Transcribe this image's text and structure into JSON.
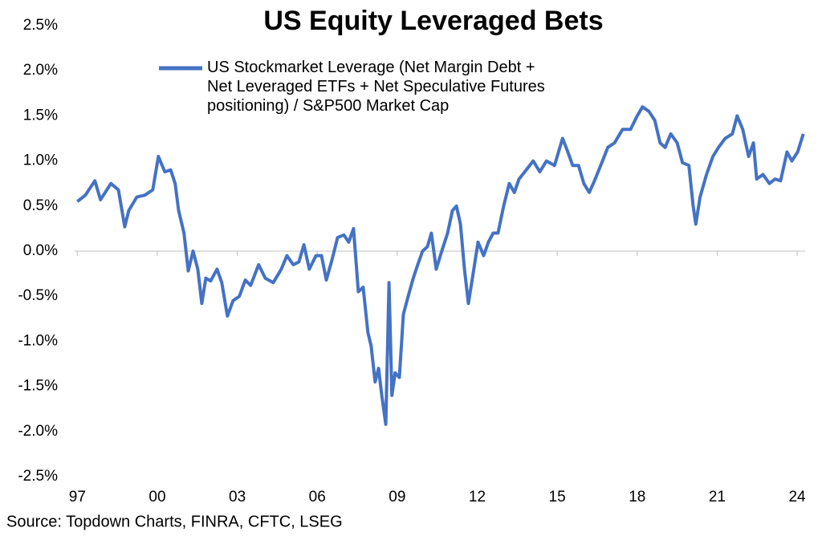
{
  "chart_data": {
    "type": "line",
    "title": "US Equity Leveraged Bets",
    "source": "Source: Topdown Charts, FINRA, CFTC, LSEG",
    "xlim": [
      1996.9,
      2024.3
    ],
    "xticks": [
      {
        "value": 1997,
        "label": "97"
      },
      {
        "value": 2000,
        "label": "00"
      },
      {
        "value": 2003,
        "label": "03"
      },
      {
        "value": 2006,
        "label": "06"
      },
      {
        "value": 2009,
        "label": "09"
      },
      {
        "value": 2012,
        "label": "12"
      },
      {
        "value": 2015,
        "label": "15"
      },
      {
        "value": 2018,
        "label": "18"
      },
      {
        "value": 2021,
        "label": "21"
      },
      {
        "value": 2024,
        "label": "24"
      }
    ],
    "ylim": [
      -2.5,
      2.5
    ],
    "yticks": [
      {
        "value": 2.5,
        "label": "2.5%"
      },
      {
        "value": 2.0,
        "label": "2.0%"
      },
      {
        "value": 1.5,
        "label": "1.5%"
      },
      {
        "value": 1.0,
        "label": "1.0%"
      },
      {
        "value": 0.5,
        "label": "0.5%"
      },
      {
        "value": 0,
        "label": "0.0%"
      },
      {
        "value": -0.5,
        "label": "-0.5%"
      },
      {
        "value": -1.0,
        "label": "-1.0%"
      },
      {
        "value": -1.5,
        "label": "-1.5%"
      },
      {
        "value": -2.0,
        "label": "-2.0%"
      },
      {
        "value": -2.5,
        "label": "-2.5%"
      }
    ],
    "grid": false,
    "x": [
      1997.0,
      1997.3,
      1997.66,
      1997.87,
      1998.26,
      1998.54,
      1998.78,
      1998.93,
      1999.23,
      1999.53,
      1999.83,
      2000.04,
      2000.28,
      2000.5,
      2000.67,
      2000.8,
      2001.0,
      2001.16,
      2001.34,
      2001.52,
      2001.67,
      2001.82,
      2002.0,
      2002.24,
      2002.42,
      2002.63,
      2002.84,
      2003.08,
      2003.3,
      2003.5,
      2003.8,
      2004.05,
      2004.35,
      2004.65,
      2004.86,
      2005.1,
      2005.31,
      2005.5,
      2005.7,
      2005.95,
      2006.16,
      2006.34,
      2006.55,
      2006.76,
      2007.0,
      2007.18,
      2007.36,
      2007.54,
      2007.72,
      2007.9,
      2008.02,
      2008.17,
      2008.3,
      2008.42,
      2008.57,
      2008.69,
      2008.8,
      2008.92,
      2009.08,
      2009.23,
      2009.41,
      2009.6,
      2009.77,
      2009.95,
      2010.13,
      2010.28,
      2010.46,
      2010.67,
      2010.89,
      2011.07,
      2011.22,
      2011.37,
      2011.52,
      2011.67,
      2011.82,
      2012.03,
      2012.24,
      2012.42,
      2012.6,
      2012.78,
      2012.99,
      2013.2,
      2013.39,
      2013.57,
      2013.84,
      2014.1,
      2014.35,
      2014.6,
      2014.9,
      2015.2,
      2015.4,
      2015.58,
      2015.8,
      2016.0,
      2016.2,
      2016.4,
      2016.63,
      2016.9,
      2017.15,
      2017.45,
      2017.75,
      2018.0,
      2018.2,
      2018.44,
      2018.66,
      2018.86,
      2019.05,
      2019.26,
      2019.5,
      2019.7,
      2019.94,
      2020.1,
      2020.2,
      2020.36,
      2020.6,
      2020.84,
      2021.05,
      2021.3,
      2021.57,
      2021.75,
      2021.96,
      2022.18,
      2022.36,
      2022.48,
      2022.72,
      2022.96,
      2023.17,
      2023.38,
      2023.62,
      2023.8,
      2024.02,
      2024.23
    ],
    "series": [
      {
        "name": "US Stockmarket Leverage (Net Margin Debt + Net Leveraged ETFs + Net Speculative Futures positioning) / S&P500 Market Cap",
        "color": "#4472c4",
        "values": [
          0.55,
          0.62,
          0.78,
          0.57,
          0.75,
          0.68,
          0.27,
          0.45,
          0.6,
          0.62,
          0.68,
          1.05,
          0.88,
          0.9,
          0.75,
          0.45,
          0.2,
          -0.22,
          0.0,
          -0.2,
          -0.58,
          -0.3,
          -0.33,
          -0.2,
          -0.35,
          -0.72,
          -0.55,
          -0.5,
          -0.32,
          -0.38,
          -0.15,
          -0.3,
          -0.35,
          -0.2,
          -0.05,
          -0.15,
          -0.12,
          0.07,
          -0.2,
          -0.05,
          -0.05,
          -0.32,
          -0.1,
          0.15,
          0.18,
          0.1,
          0.25,
          -0.45,
          -0.4,
          -0.9,
          -1.05,
          -1.45,
          -1.3,
          -1.6,
          -1.92,
          -0.35,
          -1.6,
          -1.35,
          -1.4,
          -0.7,
          -0.5,
          -0.3,
          -0.15,
          0.0,
          0.05,
          0.2,
          -0.2,
          0.0,
          0.2,
          0.45,
          0.5,
          0.3,
          -0.2,
          -0.58,
          -0.3,
          0.1,
          -0.05,
          0.1,
          0.2,
          0.2,
          0.5,
          0.75,
          0.65,
          0.8,
          0.9,
          1.0,
          0.88,
          1.0,
          0.95,
          1.25,
          1.1,
          0.95,
          0.95,
          0.75,
          0.65,
          0.78,
          0.95,
          1.15,
          1.2,
          1.35,
          1.35,
          1.5,
          1.6,
          1.55,
          1.45,
          1.2,
          1.15,
          1.3,
          1.2,
          0.98,
          0.95,
          0.5,
          0.3,
          0.6,
          0.85,
          1.05,
          1.15,
          1.25,
          1.3,
          1.5,
          1.35,
          1.05,
          1.2,
          0.8,
          0.85,
          0.75,
          0.8,
          0.78,
          1.1,
          1.0,
          1.1,
          1.3
        ]
      }
    ]
  }
}
